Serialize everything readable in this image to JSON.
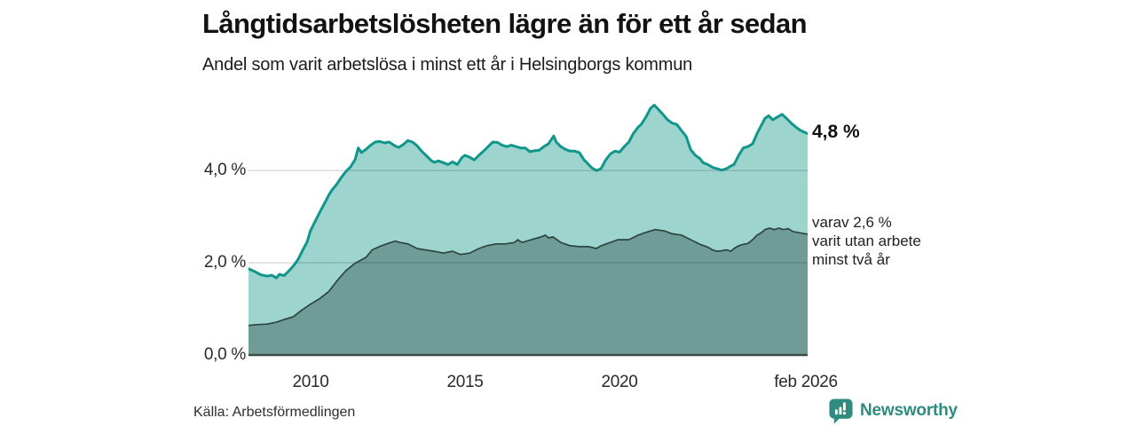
{
  "header": {
    "title": "Långtidsarbetslösheten lägre än för ett år sedan",
    "subtitle": "Andel som varit arbetslösa i minst ett år i Helsingborgs kommun"
  },
  "chart_data": {
    "type": "area",
    "title": "Långtidsarbetslösheten lägre än för ett år sedan",
    "subtitle": "Andel som varit arbetslösa i minst ett år i Helsingborgs kommun",
    "unit": "%",
    "grid": "horizontal",
    "x_axis": {
      "min": 2008.0,
      "max": 2026.08,
      "ticks": [
        {
          "x": 2010,
          "label": "2010"
        },
        {
          "x": 2015,
          "label": "2015"
        },
        {
          "x": 2020,
          "label": "2020"
        },
        {
          "x": 2026.08,
          "label": "feb 2026"
        }
      ]
    },
    "y_axis": {
      "min": 0,
      "max": 5.62,
      "ticks": [
        {
          "v": 0,
          "label": "0,0 %"
        },
        {
          "v": 2,
          "label": "2,0 %"
        },
        {
          "v": 4,
          "label": "4,0 %"
        }
      ]
    },
    "series": [
      {
        "name": "Arbetslösa minst ett år",
        "line_color": "#10968b",
        "fill_color": "#9ed4ce",
        "line_width": 3,
        "end_value": 4.8,
        "points": [
          [
            2008.0,
            1.87
          ],
          [
            2008.2,
            1.81
          ],
          [
            2008.4,
            1.74
          ],
          [
            2008.6,
            1.71
          ],
          [
            2008.75,
            1.73
          ],
          [
            2008.9,
            1.67
          ],
          [
            2009.0,
            1.75
          ],
          [
            2009.15,
            1.72
          ],
          [
            2009.3,
            1.82
          ],
          [
            2009.45,
            1.93
          ],
          [
            2009.6,
            2.07
          ],
          [
            2009.75,
            2.27
          ],
          [
            2009.9,
            2.46
          ],
          [
            2010.0,
            2.69
          ],
          [
            2010.15,
            2.89
          ],
          [
            2010.3,
            3.09
          ],
          [
            2010.45,
            3.28
          ],
          [
            2010.6,
            3.47
          ],
          [
            2010.7,
            3.58
          ],
          [
            2010.85,
            3.7
          ],
          [
            2011.0,
            3.85
          ],
          [
            2011.15,
            3.98
          ],
          [
            2011.3,
            4.08
          ],
          [
            2011.45,
            4.24
          ],
          [
            2011.55,
            4.49
          ],
          [
            2011.65,
            4.39
          ],
          [
            2011.8,
            4.46
          ],
          [
            2011.95,
            4.55
          ],
          [
            2012.1,
            4.62
          ],
          [
            2012.25,
            4.63
          ],
          [
            2012.4,
            4.6
          ],
          [
            2012.55,
            4.62
          ],
          [
            2012.7,
            4.55
          ],
          [
            2012.85,
            4.5
          ],
          [
            2013.0,
            4.56
          ],
          [
            2013.15,
            4.65
          ],
          [
            2013.3,
            4.62
          ],
          [
            2013.45,
            4.54
          ],
          [
            2013.6,
            4.42
          ],
          [
            2013.75,
            4.32
          ],
          [
            2013.9,
            4.22
          ],
          [
            2014.0,
            4.18
          ],
          [
            2014.15,
            4.21
          ],
          [
            2014.3,
            4.17
          ],
          [
            2014.45,
            4.13
          ],
          [
            2014.6,
            4.19
          ],
          [
            2014.75,
            4.13
          ],
          [
            2014.9,
            4.28
          ],
          [
            2015.0,
            4.33
          ],
          [
            2015.15,
            4.29
          ],
          [
            2015.3,
            4.23
          ],
          [
            2015.45,
            4.33
          ],
          [
            2015.6,
            4.42
          ],
          [
            2015.75,
            4.52
          ],
          [
            2015.9,
            4.62
          ],
          [
            2016.05,
            4.61
          ],
          [
            2016.2,
            4.55
          ],
          [
            2016.35,
            4.52
          ],
          [
            2016.5,
            4.55
          ],
          [
            2016.65,
            4.52
          ],
          [
            2016.8,
            4.49
          ],
          [
            2016.95,
            4.49
          ],
          [
            2017.1,
            4.41
          ],
          [
            2017.25,
            4.43
          ],
          [
            2017.4,
            4.44
          ],
          [
            2017.55,
            4.52
          ],
          [
            2017.7,
            4.58
          ],
          [
            2017.8,
            4.68
          ],
          [
            2017.87,
            4.75
          ],
          [
            2017.95,
            4.62
          ],
          [
            2018.1,
            4.52
          ],
          [
            2018.25,
            4.46
          ],
          [
            2018.4,
            4.42
          ],
          [
            2018.55,
            4.42
          ],
          [
            2018.7,
            4.39
          ],
          [
            2018.85,
            4.23
          ],
          [
            2019.0,
            4.13
          ],
          [
            2019.1,
            4.06
          ],
          [
            2019.25,
            4.0
          ],
          [
            2019.4,
            4.04
          ],
          [
            2019.55,
            4.23
          ],
          [
            2019.7,
            4.36
          ],
          [
            2019.85,
            4.42
          ],
          [
            2020.0,
            4.4
          ],
          [
            2020.15,
            4.52
          ],
          [
            2020.3,
            4.62
          ],
          [
            2020.45,
            4.81
          ],
          [
            2020.6,
            4.94
          ],
          [
            2020.7,
            5.0
          ],
          [
            2020.85,
            5.16
          ],
          [
            2021.0,
            5.35
          ],
          [
            2021.12,
            5.42
          ],
          [
            2021.25,
            5.33
          ],
          [
            2021.4,
            5.22
          ],
          [
            2021.55,
            5.1
          ],
          [
            2021.7,
            5.03
          ],
          [
            2021.85,
            5.0
          ],
          [
            2022.0,
            4.87
          ],
          [
            2022.15,
            4.74
          ],
          [
            2022.3,
            4.45
          ],
          [
            2022.45,
            4.33
          ],
          [
            2022.6,
            4.26
          ],
          [
            2022.7,
            4.17
          ],
          [
            2022.85,
            4.13
          ],
          [
            2023.0,
            4.07
          ],
          [
            2023.15,
            4.04
          ],
          [
            2023.3,
            4.01
          ],
          [
            2023.45,
            4.04
          ],
          [
            2023.6,
            4.1
          ],
          [
            2023.7,
            4.13
          ],
          [
            2023.85,
            4.33
          ],
          [
            2024.0,
            4.49
          ],
          [
            2024.15,
            4.52
          ],
          [
            2024.3,
            4.58
          ],
          [
            2024.45,
            4.81
          ],
          [
            2024.6,
            5.0
          ],
          [
            2024.7,
            5.13
          ],
          [
            2024.82,
            5.19
          ],
          [
            2024.95,
            5.1
          ],
          [
            2025.1,
            5.16
          ],
          [
            2025.25,
            5.22
          ],
          [
            2025.4,
            5.13
          ],
          [
            2025.55,
            5.03
          ],
          [
            2025.7,
            4.94
          ],
          [
            2025.85,
            4.87
          ],
          [
            2026.08,
            4.8
          ]
        ]
      },
      {
        "name": "Arbetslösa minst två år",
        "line_color": "#2d4540",
        "fill_color": "#6f9c96",
        "line_width": 1.7,
        "end_value": 2.6,
        "points": [
          [
            2008.0,
            0.64
          ],
          [
            2008.3,
            0.66
          ],
          [
            2008.6,
            0.67
          ],
          [
            2008.9,
            0.71
          ],
          [
            2009.15,
            0.77
          ],
          [
            2009.45,
            0.83
          ],
          [
            2009.7,
            0.96
          ],
          [
            2010.0,
            1.1
          ],
          [
            2010.3,
            1.22
          ],
          [
            2010.6,
            1.38
          ],
          [
            2010.85,
            1.6
          ],
          [
            2011.15,
            1.83
          ],
          [
            2011.45,
            1.99
          ],
          [
            2011.8,
            2.12
          ],
          [
            2012.0,
            2.28
          ],
          [
            2012.3,
            2.37
          ],
          [
            2012.6,
            2.44
          ],
          [
            2012.75,
            2.47
          ],
          [
            2012.9,
            2.44
          ],
          [
            2013.15,
            2.41
          ],
          [
            2013.45,
            2.31
          ],
          [
            2013.7,
            2.28
          ],
          [
            2014.0,
            2.25
          ],
          [
            2014.3,
            2.21
          ],
          [
            2014.6,
            2.25
          ],
          [
            2014.85,
            2.18
          ],
          [
            2015.15,
            2.21
          ],
          [
            2015.45,
            2.31
          ],
          [
            2015.7,
            2.37
          ],
          [
            2016.0,
            2.41
          ],
          [
            2016.3,
            2.41
          ],
          [
            2016.6,
            2.44
          ],
          [
            2016.7,
            2.5
          ],
          [
            2016.85,
            2.44
          ],
          [
            2017.15,
            2.5
          ],
          [
            2017.45,
            2.56
          ],
          [
            2017.6,
            2.6
          ],
          [
            2017.7,
            2.54
          ],
          [
            2017.85,
            2.56
          ],
          [
            2018.1,
            2.44
          ],
          [
            2018.4,
            2.37
          ],
          [
            2018.7,
            2.35
          ],
          [
            2019.0,
            2.35
          ],
          [
            2019.25,
            2.31
          ],
          [
            2019.4,
            2.37
          ],
          [
            2019.7,
            2.44
          ],
          [
            2019.95,
            2.5
          ],
          [
            2020.3,
            2.5
          ],
          [
            2020.6,
            2.6
          ],
          [
            2020.85,
            2.66
          ],
          [
            2021.15,
            2.72
          ],
          [
            2021.45,
            2.69
          ],
          [
            2021.7,
            2.63
          ],
          [
            2022.0,
            2.6
          ],
          [
            2022.3,
            2.5
          ],
          [
            2022.6,
            2.4
          ],
          [
            2022.85,
            2.34
          ],
          [
            2023.0,
            2.28
          ],
          [
            2023.15,
            2.25
          ],
          [
            2023.3,
            2.26
          ],
          [
            2023.45,
            2.28
          ],
          [
            2023.6,
            2.25
          ],
          [
            2023.7,
            2.31
          ],
          [
            2023.85,
            2.37
          ],
          [
            2024.0,
            2.4
          ],
          [
            2024.15,
            2.42
          ],
          [
            2024.3,
            2.5
          ],
          [
            2024.45,
            2.6
          ],
          [
            2024.6,
            2.66
          ],
          [
            2024.7,
            2.72
          ],
          [
            2024.85,
            2.75
          ],
          [
            2025.0,
            2.72
          ],
          [
            2025.15,
            2.75
          ],
          [
            2025.3,
            2.72
          ],
          [
            2025.45,
            2.74
          ],
          [
            2025.6,
            2.68
          ],
          [
            2025.75,
            2.66
          ],
          [
            2025.9,
            2.64
          ],
          [
            2026.08,
            2.62
          ]
        ]
      }
    ],
    "annotations": {
      "end_value_label": "4,8 %",
      "secondary_line1": "varav 2,6 %",
      "secondary_line2": "varit utan arbete",
      "secondary_line3": "minst två år"
    }
  },
  "footer": {
    "source": "Källa: Arbetsförmedlingen",
    "brand": "Newsworthy"
  },
  "colors": {
    "grid": "rgba(0,0,0,0.15)",
    "axis_line": "#3e4a46",
    "brand_teal": "#2f8b80"
  }
}
